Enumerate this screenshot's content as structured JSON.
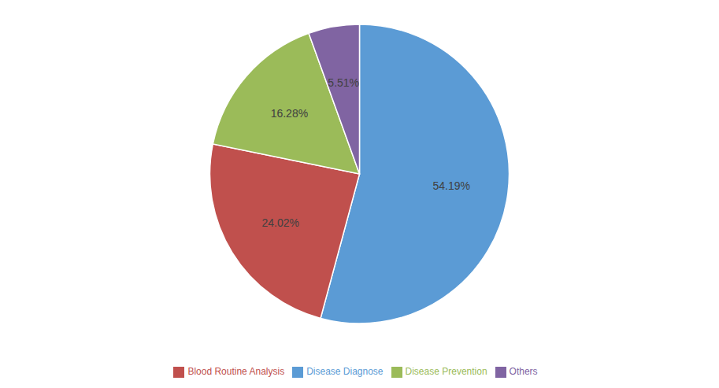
{
  "chart_data": {
    "type": "pie",
    "categories": [
      "Disease Diagnose",
      "Blood Routine Analysis",
      "Disease Prevention",
      "Others"
    ],
    "values": [
      54.19,
      24.02,
      16.28,
      5.51
    ],
    "value_labels": [
      "54.19%",
      "24.02%",
      "16.28%",
      "5.51%"
    ],
    "colors": [
      "#5B9BD5",
      "#C0504D",
      "#9BBB59",
      "#8064A2"
    ],
    "legend": "bottom",
    "data_labels": true
  }
}
